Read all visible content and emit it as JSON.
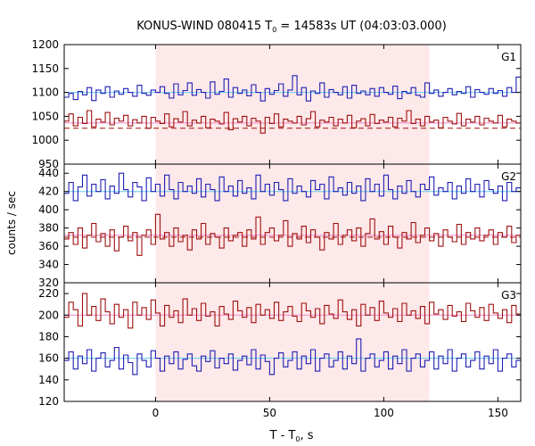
{
  "chart_data": {
    "type": "line",
    "title": "KONUS-WIND 080415 T",
    "title_sub": "0",
    "title_rest": " = 14583s UT (04:03:03.000)",
    "xlabel": "T - T",
    "xlabel_sub": "0",
    "xlabel_rest": ", s",
    "ylabel": "counts / sec",
    "xlim": [
      -40,
      160
    ],
    "x_ticks": [
      0,
      50,
      100,
      150
    ],
    "shaded_interval": [
      0,
      120
    ],
    "colors": {
      "blue": "#1f1fb4",
      "red": "#a01010",
      "cyan": "#66ccee",
      "pink": "#ee88cc",
      "shade": "#fde9e9"
    },
    "panels": [
      {
        "label": "G1",
        "ylim": [
          950,
          1200
        ],
        "y_ticks": [
          950,
          1000,
          1050,
          1100,
          1150,
          1200
        ],
        "bin_start": -40,
        "bin_width": 2,
        "series": [
          {
            "color": "blue",
            "values": [
              1090,
              1098,
              1085,
              1102,
              1095,
              1110,
              1083,
              1105,
              1098,
              1112,
              1090,
              1103,
              1096,
              1108,
              1100,
              1092,
              1115,
              1098,
              1094,
              1105,
              1100,
              1112,
              1098,
              1088,
              1118,
              1095,
              1104,
              1120,
              1094,
              1106,
              1100,
              1088,
              1122,
              1096,
              1102,
              1128,
              1090,
              1110,
              1098,
              1105,
              1093,
              1116,
              1100,
              1082,
              1108,
              1096,
              1104,
              1118,
              1092,
              1105,
              1135,
              1095,
              1110,
              1082,
              1103,
              1098,
              1120,
              1090,
              1106,
              1100,
              1095,
              1112,
              1088,
              1115,
              1098,
              1103,
              1095,
              1108,
              1092,
              1110,
              1100,
              1096,
              1113,
              1087,
              1102,
              1098,
              1110,
              1094,
              1090,
              1120,
              1098,
              1105,
              1092,
              1100,
              1108,
              1095,
              1102,
              1098,
              1112,
              1090,
              1106,
              1100,
              1096,
              1108,
              1098,
              1104,
              1092,
              1110,
              1100,
              1132
            ]
          },
          {
            "color": "red",
            "values": [
              1040,
              1055,
              1030,
              1048,
              1035,
              1062,
              1028,
              1044,
              1038,
              1058,
              1032,
              1046,
              1040,
              1052,
              1030,
              1043,
              1036,
              1050,
              1025,
              1048,
              1040,
              1035,
              1055,
              1028,
              1045,
              1038,
              1060,
              1030,
              1042,
              1036,
              1050,
              1026,
              1044,
              1040,
              1034,
              1058,
              1022,
              1045,
              1038,
              1050,
              1030,
              1046,
              1040,
              1015,
              1048,
              1035,
              1055,
              1028,
              1044,
              1040,
              1036,
              1050,
              1032,
              1045,
              1060,
              1028,
              1042,
              1038,
              1048,
              1030,
              1044,
              1036,
              1052,
              1026,
              1040,
              1045,
              1030,
              1054,
              1035,
              1042,
              1038,
              1048,
              1028,
              1046,
              1040,
              1062,
              1035,
              1044,
              1030,
              1050,
              1038,
              1042,
              1026,
              1048,
              1040,
              1034,
              1056,
              1030,
              1044,
              1038,
              1050,
              1032,
              1046,
              1040,
              1036,
              1052,
              1028,
              1044,
              1040,
              1036
            ]
          }
        ],
        "bg_lines": [
          {
            "color": "cyan",
            "value": 1100,
            "dash": false
          },
          {
            "color": "pink",
            "value": 1036,
            "dash": false
          },
          {
            "color": "red",
            "value": 1025,
            "dash": true
          }
        ]
      },
      {
        "label": "G2",
        "ylim": [
          320,
          450
        ],
        "y_ticks": [
          320,
          340,
          360,
          380,
          400,
          420,
          440
        ],
        "bin_start": -40,
        "bin_width": 2,
        "series": [
          {
            "color": "blue",
            "values": [
              418,
              430,
              410,
              425,
              438,
              415,
              428,
              420,
              433,
              412,
              426,
              418,
              440,
              422,
              414,
              430,
              425,
              410,
              435,
              420,
              428,
              415,
              438,
              422,
              412,
              430,
              420,
              426,
              418,
              434,
              414,
              428,
              422,
              410,
              436,
              420,
              426,
              415,
              432,
              418,
              424,
              412,
              438,
              420,
              428,
              416,
              430,
              422,
              410,
              434,
              418,
              426,
              420,
              414,
              432,
              422,
              428,
              412,
              436,
              420,
              424,
              416,
              430,
              418,
              426,
              410,
              434,
              420,
              428,
              415,
              438,
              422,
              412,
              426,
              418,
              432,
              420,
              414,
              428,
              422,
              436,
              416,
              424,
              420,
              430,
              412,
              426,
              418,
              434,
              420,
              428,
              414,
              432,
              422,
              418,
              426,
              410,
              430,
              420,
              424
            ]
          },
          {
            "color": "red",
            "values": [
              368,
              375,
              362,
              380,
              358,
              372,
              385,
              365,
              374,
              360,
              378,
              355,
              370,
              382,
              366,
              375,
              350,
              372,
              378,
              362,
              395,
              368,
              375,
              360,
              380,
              365,
              372,
              356,
              378,
              368,
              385,
              362,
              374,
              370,
              358,
              380,
              366,
              372,
              375,
              360,
              378,
              368,
              392,
              362,
              375,
              380,
              366,
              372,
              388,
              360,
              374,
              368,
              382,
              364,
              378,
              370,
              356,
              375,
              368,
              385,
              362,
              372,
              378,
              366,
              380,
              360,
              374,
              390,
              368,
              376,
              362,
              382,
              370,
              358,
              375,
              368,
              386,
              364,
              372,
              380,
              366,
              374,
              360,
              378,
              370,
              365,
              384,
              362,
              375,
              368,
              380,
              366,
              372,
              378,
              362,
              375,
              370,
              382,
              364,
              372
            ]
          }
        ],
        "bg_lines": [
          {
            "color": "cyan",
            "value": 420,
            "dash": false
          },
          {
            "color": "pink",
            "value": 372,
            "dash": false
          },
          {
            "color": "red",
            "value": 370,
            "dash": true
          }
        ]
      },
      {
        "label": "G3",
        "ylim": [
          120,
          230
        ],
        "y_ticks": [
          120,
          140,
          160,
          180,
          200,
          220
        ],
        "bin_start": -40,
        "bin_width": 2,
        "series": [
          {
            "color": "red",
            "values": [
              198,
              212,
              205,
              190,
              220,
              200,
              208,
              195,
              215,
              203,
              192,
              210,
              198,
              205,
              188,
              212,
              200,
              207,
              196,
              214,
              202,
              190,
              209,
              198,
              204,
              193,
              215,
              200,
              206,
              195,
              211,
              199,
              203,
              190,
              208,
              201,
              196,
              213,
              204,
              198,
              207,
              193,
              210,
              200,
              205,
              197,
              212,
              195,
              203,
              208,
              199,
              194,
              211,
              204,
              198,
              206,
              192,
              209,
              201,
              197,
              214,
              203,
              196,
              205,
              190,
              210,
              200,
              207,
              195,
              213,
              202,
              198,
              206,
              194,
              211,
              200,
              204,
              197,
              208,
              192,
              212,
              201,
              205,
              196,
              209,
              199,
              203,
              194,
              211,
              204,
              198,
              207,
              195,
              210,
              202,
              197,
              205,
              193,
              209,
              201
            ]
          },
          {
            "color": "blue",
            "values": [
              158,
              166,
              150,
              162,
              155,
              168,
              148,
              160,
              165,
              152,
              158,
              170,
              150,
              163,
              156,
              145,
              164,
              158,
              152,
              167,
              160,
              148,
              162,
              155,
              166,
              150,
              159,
              164,
              153,
              148,
              162,
              157,
              167,
              151,
              160,
              155,
              164,
              149,
              158,
              162,
              154,
              168,
              150,
              163,
              157,
              145,
              160,
              165,
              152,
              158,
              166,
              150,
              162,
              155,
              168,
              148,
              160,
              164,
              152,
              158,
              166,
              150,
              162,
              155,
              178,
              148,
              160,
              164,
              152,
              158,
              166,
              150,
              162,
              155,
              168,
              148,
              160,
              164,
              152,
              158,
              166,
              150,
              162,
              155,
              168,
              148,
              160,
              164,
              152,
              158,
              166,
              150,
              162,
              155,
              168,
              148,
              160,
              164,
              152,
              158
            ]
          }
        ],
        "bg_lines": [
          {
            "color": "pink",
            "value": 200,
            "dash": false
          },
          {
            "color": "cyan",
            "value": 160,
            "dash": false
          }
        ]
      }
    ]
  }
}
